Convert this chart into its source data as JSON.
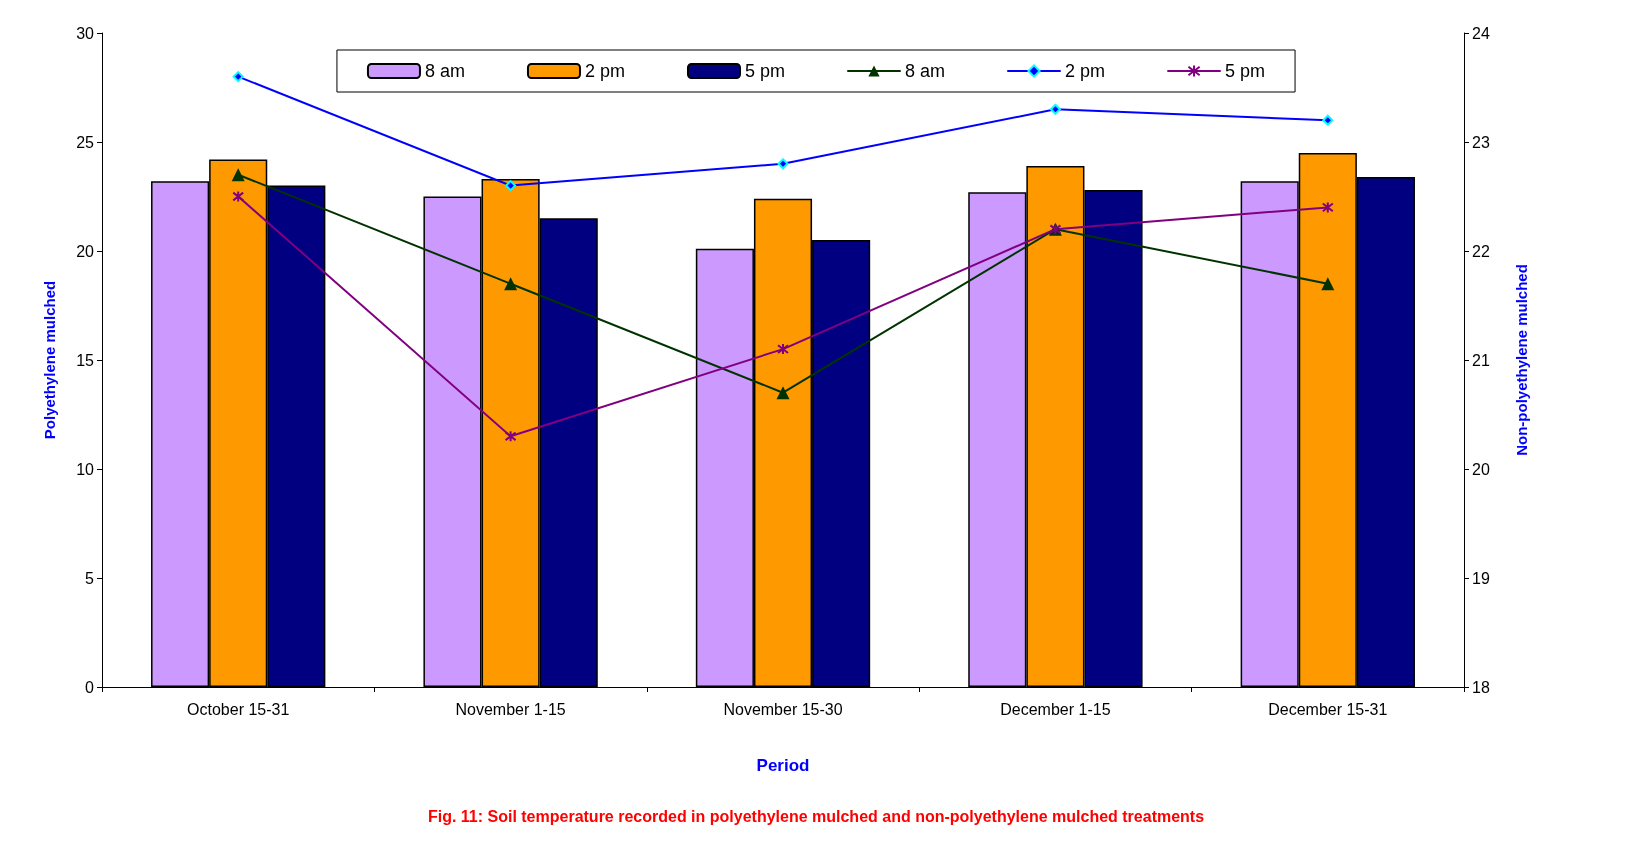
{
  "chart_data": {
    "type": "bar",
    "title": "Fig. 11: Soil temperature recorded in polyethylene mulched and non-polyethylene mulched treatments",
    "xlabel": "Period",
    "ylabel": "Polyethylene mulched",
    "y2label": "Non-polyethylene mulched",
    "categories": [
      "October 15-31",
      "November 1-15",
      "November 15-30",
      "December 1-15",
      "December 15-31"
    ],
    "series": [
      {
        "name": "8 am",
        "color": "#cc99ff",
        "values": [
          23.2,
          22.5,
          20.1,
          22.7,
          23.2
        ]
      },
      {
        "name": "2 pm",
        "color": "#ff9900",
        "values": [
          24.2,
          23.3,
          22.4,
          23.9,
          24.5
        ]
      },
      {
        "name": "5 pm",
        "color": "#000080",
        "values": [
          23.0,
          21.5,
          20.5,
          22.8,
          23.4
        ]
      },
      {
        "name": "8 am",
        "type": "line",
        "axis": "y2",
        "marker": "triangle",
        "color": "#003300",
        "values": [
          22.7,
          21.7,
          20.7,
          22.2,
          21.7
        ]
      },
      {
        "name": "2 pm",
        "type": "line",
        "axis": "y2",
        "marker": "diamond",
        "color": "#0000ff",
        "values": [
          23.6,
          22.6,
          22.8,
          23.3,
          23.2
        ]
      },
      {
        "name": "5 pm",
        "type": "line",
        "axis": "y2",
        "marker": "cross",
        "color": "#800080",
        "values": [
          22.5,
          20.3,
          21.1,
          22.2,
          22.4
        ]
      }
    ],
    "ylim": [
      0,
      30
    ],
    "yticks": [
      0,
      5,
      10,
      15,
      20,
      25,
      30
    ],
    "y2lim": [
      18,
      24
    ],
    "y2ticks": [
      18,
      19,
      20,
      21,
      22,
      23,
      24
    ],
    "grid": false,
    "legend": "top"
  }
}
